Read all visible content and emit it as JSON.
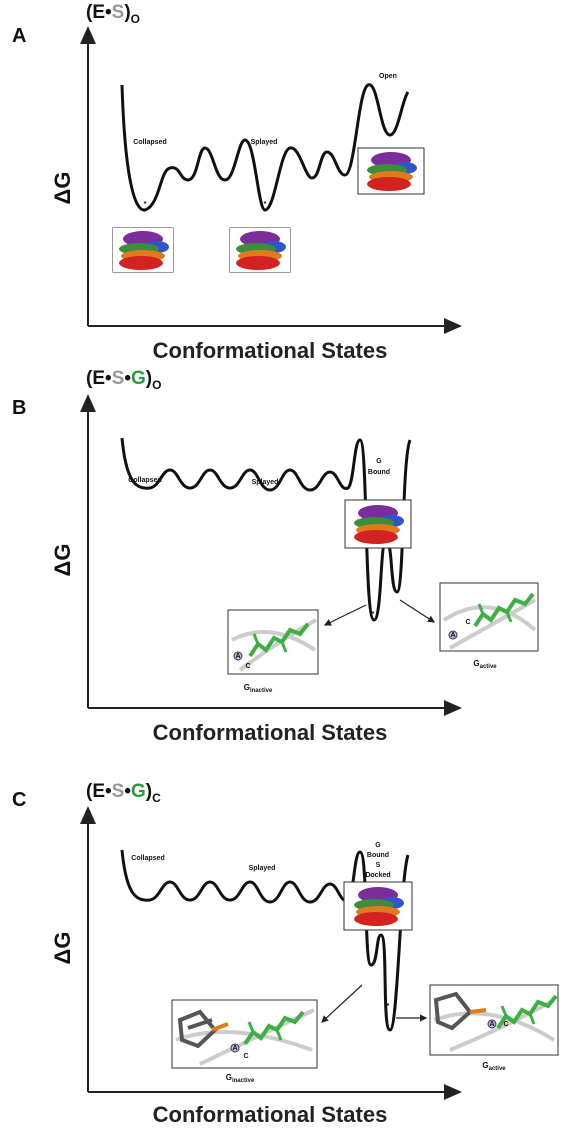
{
  "panels": [
    {
      "label": "A",
      "complex": {
        "open": "(E•",
        "s": "S",
        "close": ")",
        "subscript": "O"
      },
      "y_axis": "ΔG",
      "x_axis": "Conformational States",
      "states": {
        "collapsed": "Collapsed",
        "splayed": "Splayed",
        "open": "Open"
      },
      "minimum_mark": "*"
    },
    {
      "label": "B",
      "complex": {
        "open": "(E•",
        "s": "S",
        "dot": "•",
        "g": "G",
        "close": ")",
        "subscript": "O"
      },
      "y_axis": "ΔG",
      "x_axis": "Conformational States",
      "states": {
        "collapsed": "Collapsed",
        "splayed": "Splayed",
        "g": "G",
        "bound": "Bound"
      },
      "insets": {
        "g": "G",
        "inactive": "inactive",
        "active": "active",
        "a": "A",
        "c": "C"
      },
      "minimum_mark": "*"
    },
    {
      "label": "C",
      "complex": {
        "open": "(E•",
        "s": "S",
        "dot": "•",
        "g": "G",
        "close": ")",
        "subscript": "C"
      },
      "y_axis": "ΔG",
      "x_axis": "Conformational States",
      "states": {
        "collapsed": "Collapsed",
        "splayed": "Splayed",
        "g": "G",
        "bound": "Bound",
        "s": "S",
        "docked": "Docked"
      },
      "insets": {
        "g": "G",
        "inactive": "inactive",
        "active": "active",
        "a": "A",
        "c": "C"
      },
      "minimum_mark": "*"
    }
  ]
}
